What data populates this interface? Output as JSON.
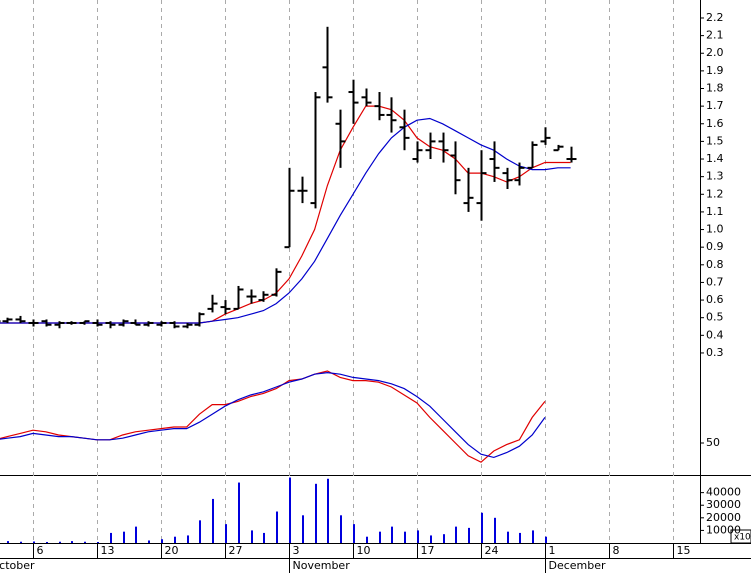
{
  "chart_data": {
    "type": "ohlc",
    "categories": [
      null,
      null,
      null,
      "6",
      null,
      null,
      null,
      null,
      "13",
      null,
      null,
      null,
      null,
      "20",
      null,
      null,
      null,
      null,
      "27",
      null,
      null,
      null,
      null,
      "3",
      null,
      null,
      null,
      null,
      "10",
      null,
      null,
      null,
      null,
      "17",
      null,
      null,
      null,
      null,
      "24",
      null,
      null,
      null,
      null,
      "1",
      null,
      null,
      null,
      null,
      "8",
      null,
      null,
      null,
      null,
      "15",
      null,
      null
    ],
    "months": [
      "October",
      null,
      null,
      null,
      null,
      null,
      null,
      null,
      null,
      null,
      null,
      null,
      null,
      null,
      null,
      null,
      null,
      null,
      null,
      null,
      null,
      null,
      null,
      "November",
      null,
      null,
      null,
      null,
      null,
      null,
      null,
      null,
      null,
      null,
      null,
      null,
      null,
      null,
      null,
      null,
      null,
      null,
      null,
      "December",
      null,
      null,
      null,
      null,
      null,
      null,
      null,
      null,
      null,
      null,
      null,
      null
    ],
    "color": "#000000",
    "open": [
      0.49,
      0.48,
      0.49,
      0.47,
      0.48,
      0.46,
      0.47,
      0.47,
      0.47,
      0.47,
      0.46,
      0.47,
      0.46,
      0.46,
      0.47,
      0.45,
      0.46,
      0.55,
      0.56,
      0.55,
      0.62,
      0.6,
      0.63,
      0.9,
      1.22,
      1.15,
      1.92,
      1.6,
      1.78,
      1.75,
      1.7,
      1.65,
      1.58,
      1.4,
      1.45,
      1.5,
      1.42,
      1.15,
      1.15,
      1.4,
      1.32,
      1.28,
      1.35,
      1.5,
      1.45,
      1.4,
      null,
      null,
      null,
      null,
      null,
      null,
      null,
      null,
      null,
      null
    ],
    "high": [
      0.5,
      0.5,
      0.51,
      0.49,
      0.49,
      0.48,
      0.48,
      0.48,
      0.49,
      0.48,
      0.49,
      0.49,
      0.48,
      0.48,
      0.48,
      0.47,
      0.53,
      0.63,
      0.6,
      0.68,
      0.66,
      0.65,
      0.78,
      1.35,
      1.3,
      1.78,
      2.15,
      1.68,
      1.85,
      1.8,
      1.78,
      1.75,
      1.68,
      1.5,
      1.55,
      1.55,
      1.5,
      1.35,
      1.45,
      1.5,
      1.35,
      1.38,
      1.5,
      1.58,
      1.48,
      1.47,
      null,
      null,
      null,
      null,
      null,
      null,
      null,
      null,
      null,
      null
    ],
    "low": [
      0.46,
      0.47,
      0.47,
      0.45,
      0.45,
      0.44,
      0.46,
      0.46,
      0.45,
      0.44,
      0.45,
      0.46,
      0.45,
      0.45,
      0.44,
      0.44,
      0.45,
      0.53,
      0.52,
      0.55,
      0.58,
      0.59,
      0.62,
      0.9,
      1.15,
      1.12,
      1.72,
      1.35,
      1.6,
      1.7,
      1.62,
      1.55,
      1.45,
      1.38,
      1.4,
      1.38,
      1.2,
      1.1,
      1.05,
      1.27,
      1.23,
      1.25,
      1.35,
      1.48,
      1.45,
      1.38,
      null,
      null,
      null,
      null,
      null,
      null,
      null,
      null,
      null,
      null
    ],
    "close": [
      0.48,
      0.49,
      0.48,
      0.47,
      0.46,
      0.47,
      0.47,
      0.48,
      0.46,
      0.46,
      0.48,
      0.46,
      0.47,
      0.47,
      0.45,
      0.46,
      0.52,
      0.58,
      0.55,
      0.66,
      0.62,
      0.63,
      0.76,
      1.22,
      1.22,
      1.75,
      1.75,
      1.5,
      1.72,
      1.72,
      1.65,
      1.62,
      1.52,
      1.45,
      1.5,
      1.45,
      1.28,
      1.18,
      1.32,
      1.35,
      1.28,
      1.35,
      1.48,
      1.52,
      1.47,
      1.4,
      null,
      null,
      null,
      null,
      null,
      null,
      null,
      null,
      null,
      null
    ],
    "overlays": [
      {
        "color": "#e00000",
        "values": [
          0.47,
          0.47,
          0.47,
          0.47,
          0.47,
          0.47,
          0.47,
          0.47,
          0.47,
          0.47,
          0.47,
          0.47,
          0.47,
          0.47,
          0.47,
          0.47,
          0.47,
          0.48,
          0.52,
          0.55,
          0.58,
          0.6,
          0.64,
          0.72,
          0.85,
          1.0,
          1.25,
          1.45,
          1.58,
          1.7,
          1.7,
          1.68,
          1.62,
          1.52,
          1.47,
          1.45,
          1.4,
          1.32,
          1.32,
          1.3,
          1.27,
          1.3,
          1.35,
          1.38,
          1.38,
          1.38,
          null,
          null,
          null,
          null,
          null,
          null,
          null,
          null,
          null,
          null
        ]
      },
      {
        "color": "#0000cc",
        "values": [
          0.47,
          0.47,
          0.47,
          0.47,
          0.47,
          0.47,
          0.47,
          0.47,
          0.47,
          0.47,
          0.47,
          0.47,
          0.47,
          0.47,
          0.47,
          0.47,
          0.47,
          0.48,
          0.49,
          0.5,
          0.52,
          0.54,
          0.58,
          0.64,
          0.72,
          0.82,
          0.95,
          1.08,
          1.2,
          1.32,
          1.43,
          1.52,
          1.58,
          1.62,
          1.63,
          1.6,
          1.56,
          1.52,
          1.48,
          1.45,
          1.4,
          1.36,
          1.34,
          1.34,
          1.35,
          1.35,
          null,
          null,
          null,
          null,
          null,
          null,
          null,
          null,
          null,
          null
        ]
      }
    ],
    "ylim": [
      0.243,
      2.302
    ],
    "yticks": [
      0.3,
      0.4,
      0.5,
      0.6,
      0.7,
      0.8,
      0.9,
      {
        "value": 1,
        "label": "1.0"
      },
      1.1,
      1.2,
      1.3,
      1.4,
      1.5,
      1.6,
      1.7,
      1.8,
      1.9,
      {
        "value": 2,
        "label": "2.0"
      },
      2.1,
      2.2
    ],
    "grid": true,
    "oscillator": {
      "ylim": [
        30,
        100
      ],
      "yticks": [
        50
      ],
      "lines": [
        {
          "color": "#e00000",
          "values": [
            52,
            54,
            56,
            58,
            57,
            55,
            54,
            53,
            52,
            52,
            55,
            57,
            58,
            59,
            60,
            60,
            68,
            74,
            74,
            76,
            79,
            81,
            84,
            89,
            90,
            93,
            95,
            91,
            89,
            89,
            88,
            85,
            80,
            75,
            66,
            58,
            50,
            42,
            38,
            45,
            49,
            52,
            66,
            76,
            null,
            null,
            null,
            null,
            null,
            null,
            null,
            null,
            null,
            null,
            null,
            null
          ]
        },
        {
          "color": "#0000cc",
          "values": [
            52,
            53,
            54,
            56,
            55,
            54,
            54,
            53,
            52,
            52,
            53,
            55,
            57,
            58,
            59,
            59,
            63,
            68,
            73,
            77,
            80,
            82,
            85,
            88,
            90,
            93,
            94,
            93,
            91,
            90,
            89,
            87,
            84,
            79,
            73,
            65,
            57,
            49,
            43,
            41,
            44,
            48,
            55,
            66,
            null,
            null,
            null,
            null,
            null,
            null,
            null,
            null,
            null,
            null,
            null,
            null
          ]
        }
      ]
    },
    "volume": {
      "color": "#0000dd",
      "values": [
        1000,
        1500,
        1000,
        1200,
        800,
        1000,
        1500,
        1000,
        800,
        8000,
        9000,
        13000,
        2000,
        3000,
        5000,
        6000,
        18000,
        35000,
        15000,
        48000,
        10000,
        8000,
        25000,
        52000,
        22000,
        47000,
        51000,
        22000,
        15000,
        5000,
        9000,
        13000,
        9000,
        10000,
        6000,
        7000,
        13000,
        12000,
        24000,
        20000,
        9000,
        8000,
        10000,
        5000,
        null,
        null,
        null,
        null,
        null,
        null,
        null,
        null,
        null,
        null,
        null,
        null
      ],
      "ylim": [
        0,
        54000
      ],
      "yticks": [
        10000,
        20000,
        30000,
        40000
      ],
      "unit_label": "x10"
    }
  }
}
